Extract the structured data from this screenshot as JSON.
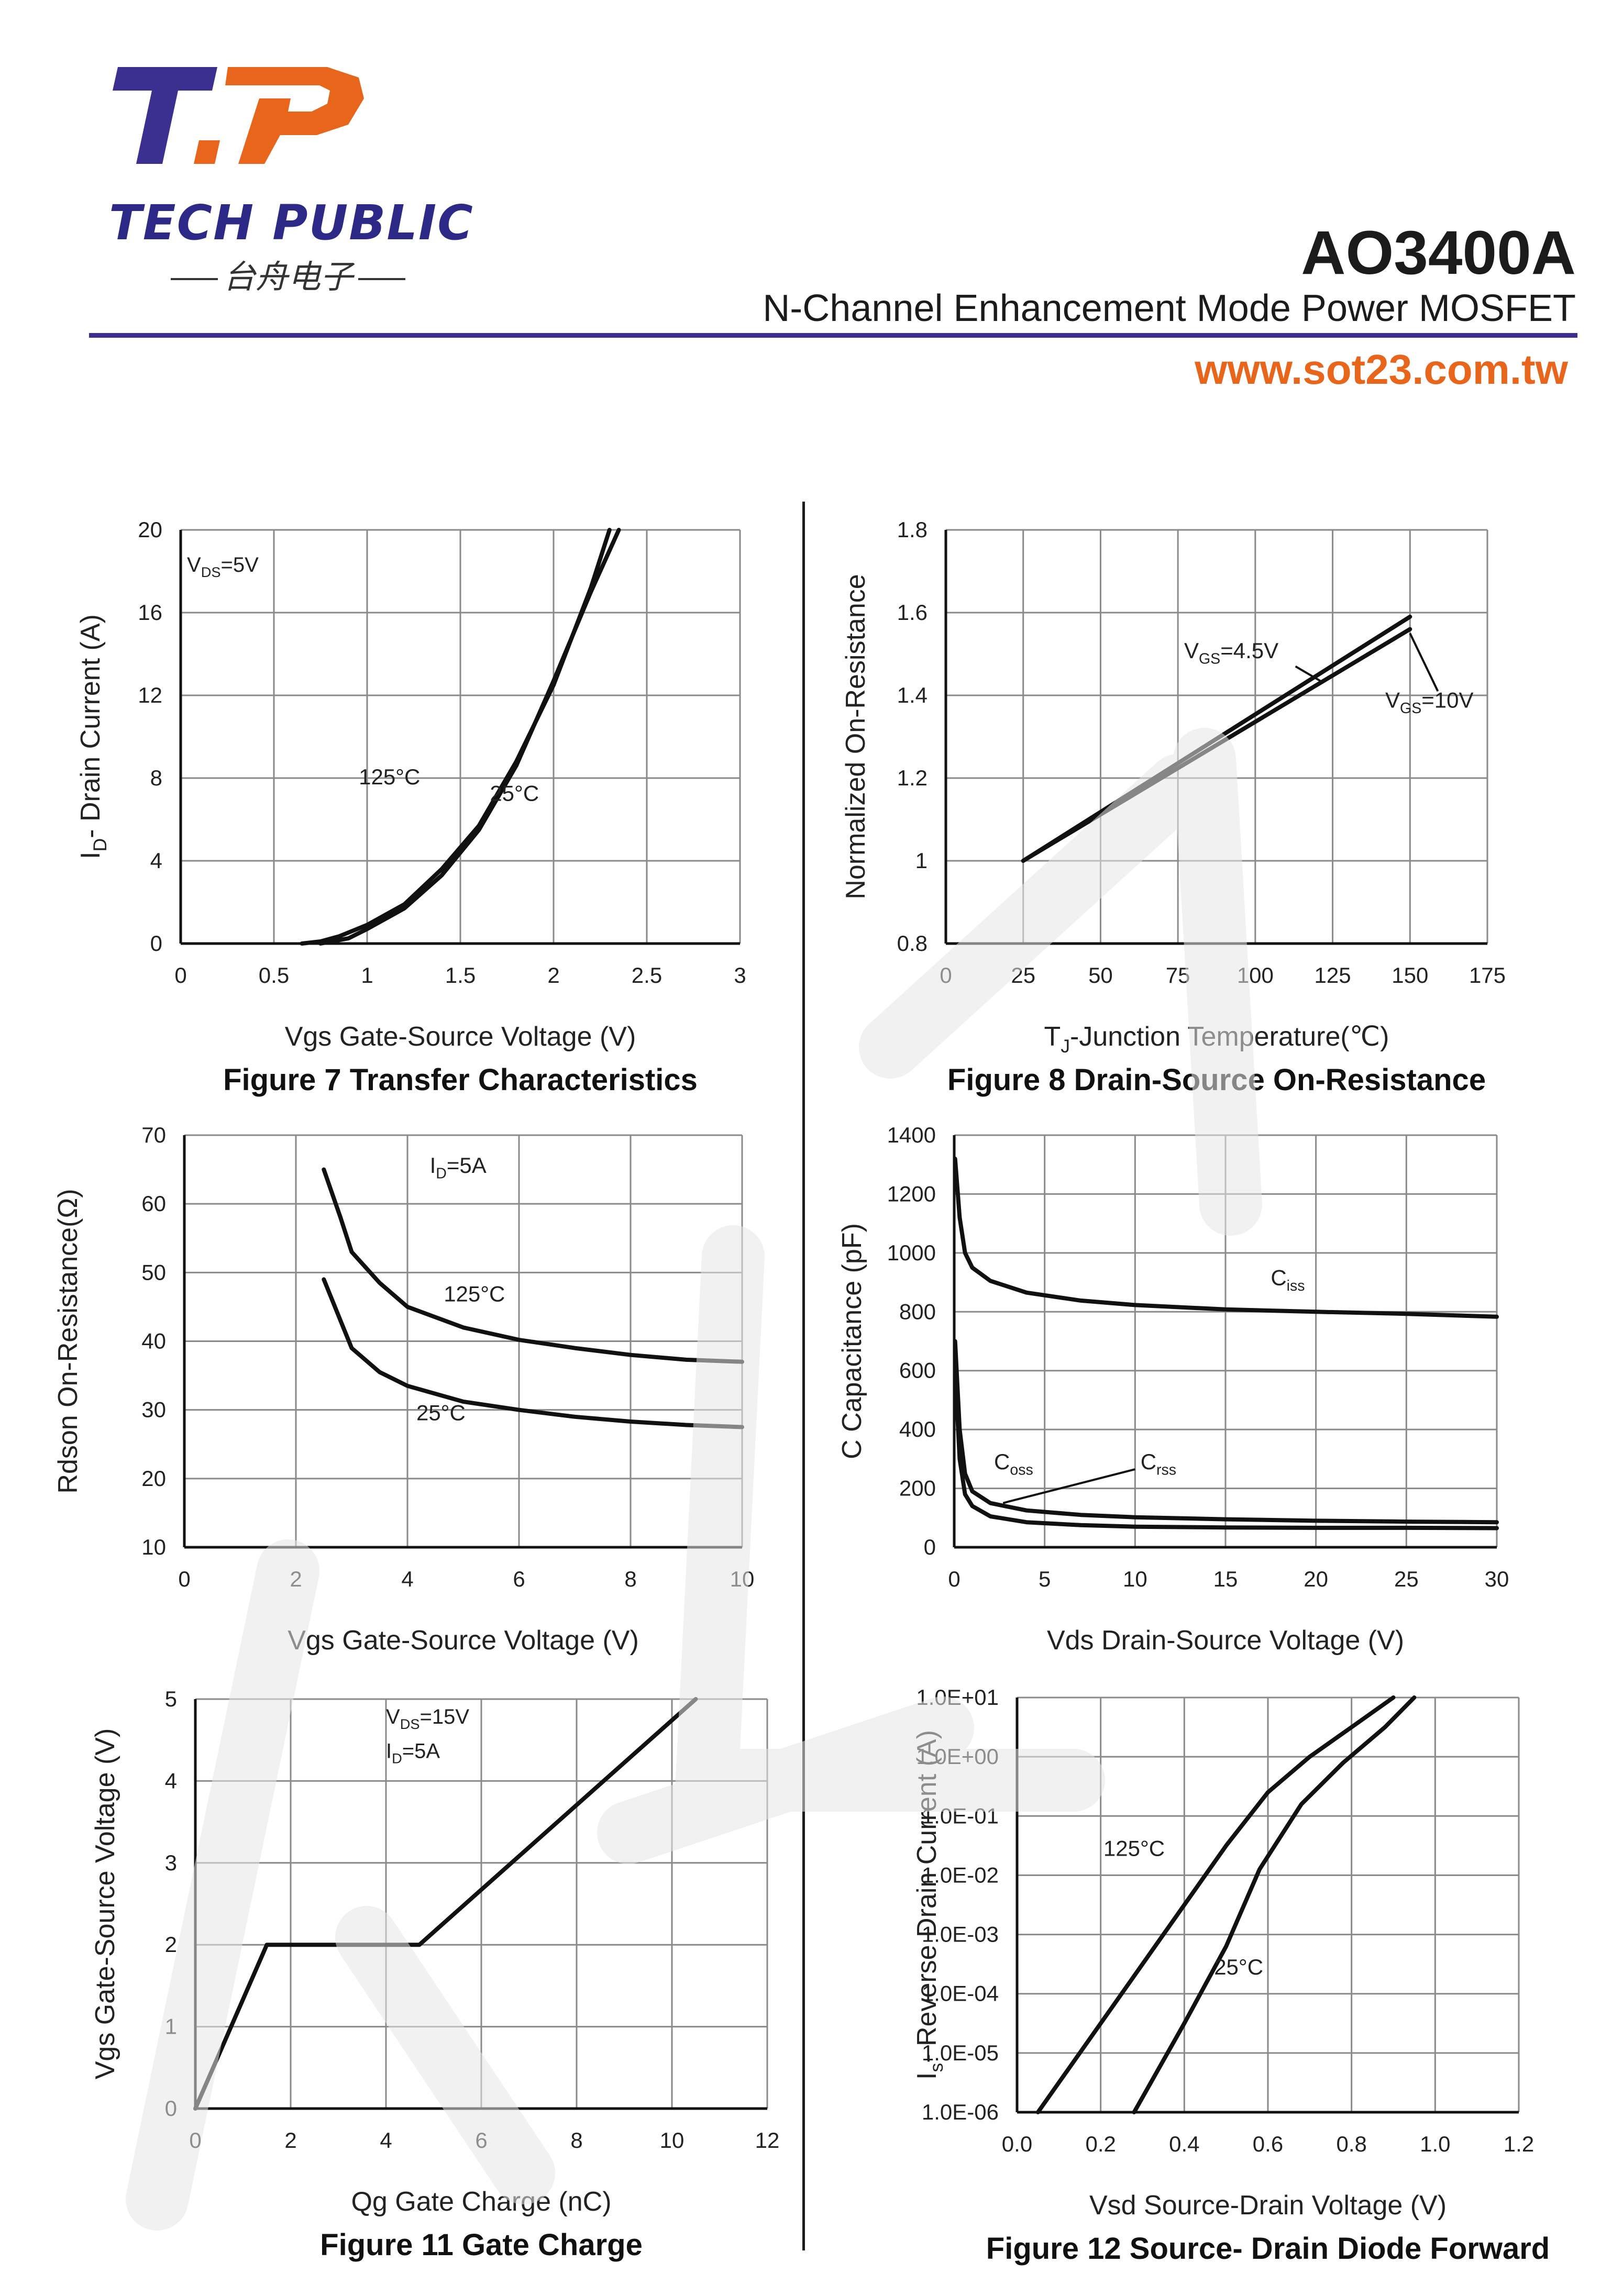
{
  "header": {
    "company_name": "TECH PUBLIC",
    "company_name_cn": "台舟电子",
    "part_number": "AO3400A",
    "subtitle": "N-Channel Enhancement Mode Power MOSFET",
    "website": "www.sot23.com.tw",
    "colors": {
      "brand_blue": "#2c2a86",
      "brand_orange": "#e8661b",
      "rule": "#3a2f8c"
    }
  },
  "chart_data": [
    {
      "id": "fig7",
      "type": "line",
      "title": "Figure 7 Transfer Characteristics",
      "xlabel": "Vgs Gate-Source Voltage (V)",
      "ylabel_main": "I",
      "ylabel_sub": "D",
      "ylabel_rest": "- Drain Current (A)",
      "xlim": [
        0,
        3
      ],
      "ylim": [
        0,
        20
      ],
      "xticks": [
        "0",
        "0.5",
        "1",
        "1.5",
        "2",
        "2.5",
        "3"
      ],
      "yticks": [
        "0",
        "4",
        "8",
        "12",
        "16",
        "20"
      ],
      "annotation": {
        "main": "V",
        "sub": "DS",
        "rest": "=5V"
      },
      "series": [
        {
          "name": "125°C",
          "x": [
            0.65,
            0.75,
            0.85,
            1.0,
            1.2,
            1.4,
            1.6,
            1.8,
            2.0,
            2.2,
            2.3
          ],
          "y": [
            0,
            0.1,
            0.35,
            0.9,
            1.9,
            3.6,
            5.7,
            8.8,
            12.5,
            17.2,
            20
          ]
        },
        {
          "name": "25°C",
          "x": [
            0.75,
            0.9,
            1.0,
            1.2,
            1.4,
            1.6,
            1.8,
            2.0,
            2.2,
            2.35
          ],
          "y": [
            0,
            0.25,
            0.7,
            1.7,
            3.3,
            5.5,
            8.6,
            12.7,
            17.0,
            20
          ]
        }
      ]
    },
    {
      "id": "fig8",
      "type": "line",
      "title": "Figure 8 Drain-Source On-Resistance",
      "xlabel_pre": "T",
      "xlabel_sub": "J",
      "xlabel_rest": "-Junction Temperature(℃)",
      "ylabel": "Normalized On-Resistance",
      "xlim": [
        0,
        175
      ],
      "ylim": [
        0.8,
        1.8
      ],
      "xticks": [
        "0",
        "25",
        "50",
        "75",
        "100",
        "125",
        "150",
        "175"
      ],
      "yticks": [
        "0.8",
        "1",
        "1.2",
        "1.4",
        "1.6",
        "1.8"
      ],
      "series": [
        {
          "name": "VGS=4.5V",
          "label_main": "V",
          "label_sub": "GS",
          "label_rest": "=4.5V",
          "x": [
            25,
            150
          ],
          "y": [
            1.0,
            1.59
          ]
        },
        {
          "name": "VGS=10V",
          "label_main": "V",
          "label_sub": "GS",
          "label_rest": "=10V",
          "x": [
            25,
            150
          ],
          "y": [
            1.0,
            1.56
          ]
        }
      ]
    },
    {
      "id": "fig9",
      "type": "line",
      "title": "",
      "xlabel": "Vgs Gate-Source Voltage (V)",
      "ylabel": "Rdson On-Resistance(Ω)",
      "xlim": [
        0,
        10
      ],
      "ylim": [
        10,
        70
      ],
      "xticks": [
        "0",
        "2",
        "4",
        "6",
        "8",
        "10"
      ],
      "yticks": [
        "10",
        "20",
        "30",
        "40",
        "50",
        "60",
        "70"
      ],
      "annotation": {
        "main": "I",
        "sub": "D",
        "rest": "=5A"
      },
      "series": [
        {
          "name": "125°C",
          "x": [
            2.5,
            2.8,
            3.0,
            3.5,
            4.0,
            5.0,
            6.0,
            7.0,
            8.0,
            9.0,
            10.0
          ],
          "y": [
            65,
            58,
            53,
            48.5,
            45,
            42,
            40.2,
            39,
            38,
            37.3,
            37
          ]
        },
        {
          "name": "25°C",
          "x": [
            2.5,
            2.8,
            3.0,
            3.5,
            4.0,
            5.0,
            6.0,
            7.0,
            8.0,
            9.0,
            10.0
          ],
          "y": [
            49,
            43,
            39,
            35.5,
            33.5,
            31.2,
            30,
            29,
            28.3,
            27.8,
            27.5
          ]
        }
      ]
    },
    {
      "id": "fig10",
      "type": "line",
      "title": "",
      "xlabel": "Vds Drain-Source Voltage (V)",
      "ylabel": "C Capacitance (pF)",
      "xlim": [
        0,
        30
      ],
      "ylim": [
        0,
        1400
      ],
      "xticks": [
        "0",
        "5",
        "10",
        "15",
        "20",
        "25",
        "30"
      ],
      "yticks": [
        "0",
        "200",
        "400",
        "600",
        "800",
        "1000",
        "1200",
        "1400"
      ],
      "series": [
        {
          "name": "Ciss",
          "label_main": "C",
          "label_sub": "iss",
          "x": [
            0.05,
            0.3,
            0.6,
            1.0,
            2.0,
            4.0,
            7.0,
            10.0,
            15.0,
            20.0,
            25.0,
            30.0
          ],
          "y": [
            1320,
            1120,
            1000,
            950,
            905,
            865,
            838,
            823,
            808,
            800,
            793,
            783
          ]
        },
        {
          "name": "Coss",
          "label_main": "C",
          "label_sub": "oss",
          "x": [
            0.05,
            0.3,
            0.6,
            1.0,
            2.0,
            4.0,
            7.0,
            10.0,
            15.0,
            20.0,
            25.0,
            30.0
          ],
          "y": [
            700,
            400,
            250,
            190,
            150,
            125,
            110,
            102,
            95,
            90,
            87,
            85
          ]
        },
        {
          "name": "Crss",
          "label_main": "C",
          "label_sub": "rss",
          "x": [
            0.05,
            0.3,
            0.6,
            1.0,
            2.0,
            4.0,
            7.0,
            10.0,
            15.0,
            20.0,
            25.0,
            30.0
          ],
          "y": [
            600,
            300,
            180,
            140,
            105,
            85,
            75,
            70,
            67,
            66,
            66,
            65
          ]
        }
      ]
    },
    {
      "id": "fig11",
      "type": "line",
      "title": "Figure 11 Gate Charge",
      "xlabel": "Qg Gate Charge (nC)",
      "ylabel": "Vgs Gate-Source Voltage (V)",
      "xlim": [
        0,
        12
      ],
      "ylim": [
        0,
        5
      ],
      "xticks": [
        "0",
        "2",
        "4",
        "6",
        "8",
        "10",
        "12"
      ],
      "yticks": [
        "0",
        "1",
        "2",
        "3",
        "4",
        "5"
      ],
      "annotation1": {
        "main": "V",
        "sub": "DS",
        "rest": "=15V"
      },
      "annotation2": {
        "main": "I",
        "sub": "D",
        "rest": "=5A"
      },
      "series": [
        {
          "name": "Vgs",
          "x": [
            0,
            1.5,
            4.7,
            10.5
          ],
          "y": [
            0,
            2,
            2,
            5
          ]
        }
      ]
    },
    {
      "id": "fig12",
      "type": "line",
      "title": "Figure 12 Source- Drain Diode Forward",
      "xlabel": "Vsd Source-Drain Voltage (V)",
      "ylabel_main": "I",
      "ylabel_sub": "s",
      "ylabel_rest": "- Reverse Drain Current (A)",
      "xlim": [
        0,
        1.2
      ],
      "ylim_log10": [
        -6,
        1
      ],
      "xticks": [
        "0.0",
        "0.2",
        "0.4",
        "0.6",
        "0.8",
        "1.0",
        "1.2"
      ],
      "yticks": [
        "1.0E-06",
        "1.0E-05",
        "1.0E-04",
        "1.0E-03",
        "1.0E-02",
        "1.0E-01",
        "1.0E+00",
        "1.0E+01"
      ],
      "series": [
        {
          "name": "125°C",
          "x": [
            0.05,
            0.2,
            0.35,
            0.5,
            0.6,
            0.7,
            0.8,
            0.9
          ],
          "log10y": [
            -6,
            -4.5,
            -3,
            -1.5,
            -0.6,
            0,
            0.5,
            1
          ]
        },
        {
          "name": "25°C",
          "x": [
            0.28,
            0.4,
            0.5,
            0.58,
            0.68,
            0.78,
            0.88,
            0.95
          ],
          "log10y": [
            -6,
            -4.5,
            -3.2,
            -1.9,
            -0.8,
            -0.1,
            0.5,
            1
          ]
        }
      ]
    }
  ]
}
